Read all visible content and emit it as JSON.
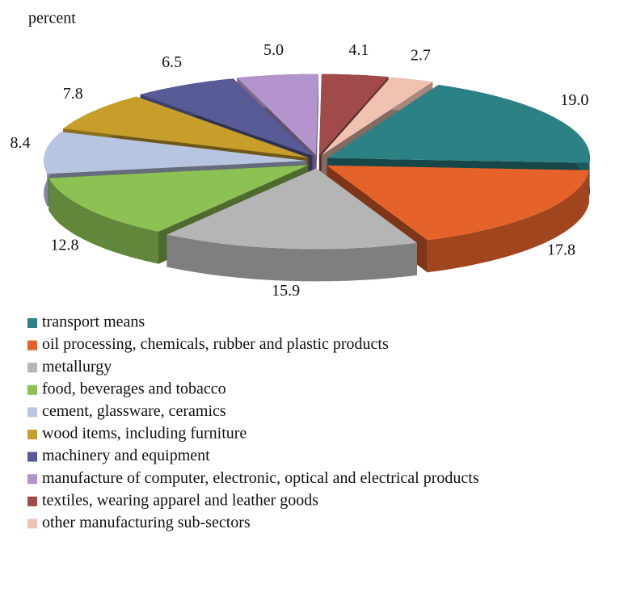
{
  "chart_data": {
    "type": "pie",
    "subtitle": "percent",
    "categories": [
      "transport means",
      "oil processing, chemicals, rubber and plastic products",
      "metallurgy",
      "food, beverages and tobacco",
      "cement, glassware, ceramics",
      "wood items, including furniture",
      "machinery and equipment",
      "manufacture of computer, electronic, optical and electrical products",
      "textiles, wearing apparel and leather goods",
      "other manufacturing sub-sectors"
    ],
    "values": [
      19.0,
      17.8,
      15.9,
      12.8,
      8.4,
      7.8,
      6.5,
      5.0,
      4.1,
      2.7
    ],
    "value_labels": [
      "19.0",
      "17.8",
      "15.9",
      "12.8",
      "8.4",
      "7.8",
      "6.5",
      "5.0",
      "4.1",
      "2.7"
    ],
    "colors": [
      "#2b8184",
      "#e6622b",
      "#b5b5b5",
      "#8dc153",
      "#b8c5e1",
      "#c89e2b",
      "#585a96",
      "#b394cc",
      "#a04a4a",
      "#f0c2b2"
    ],
    "legend": "bottom"
  }
}
